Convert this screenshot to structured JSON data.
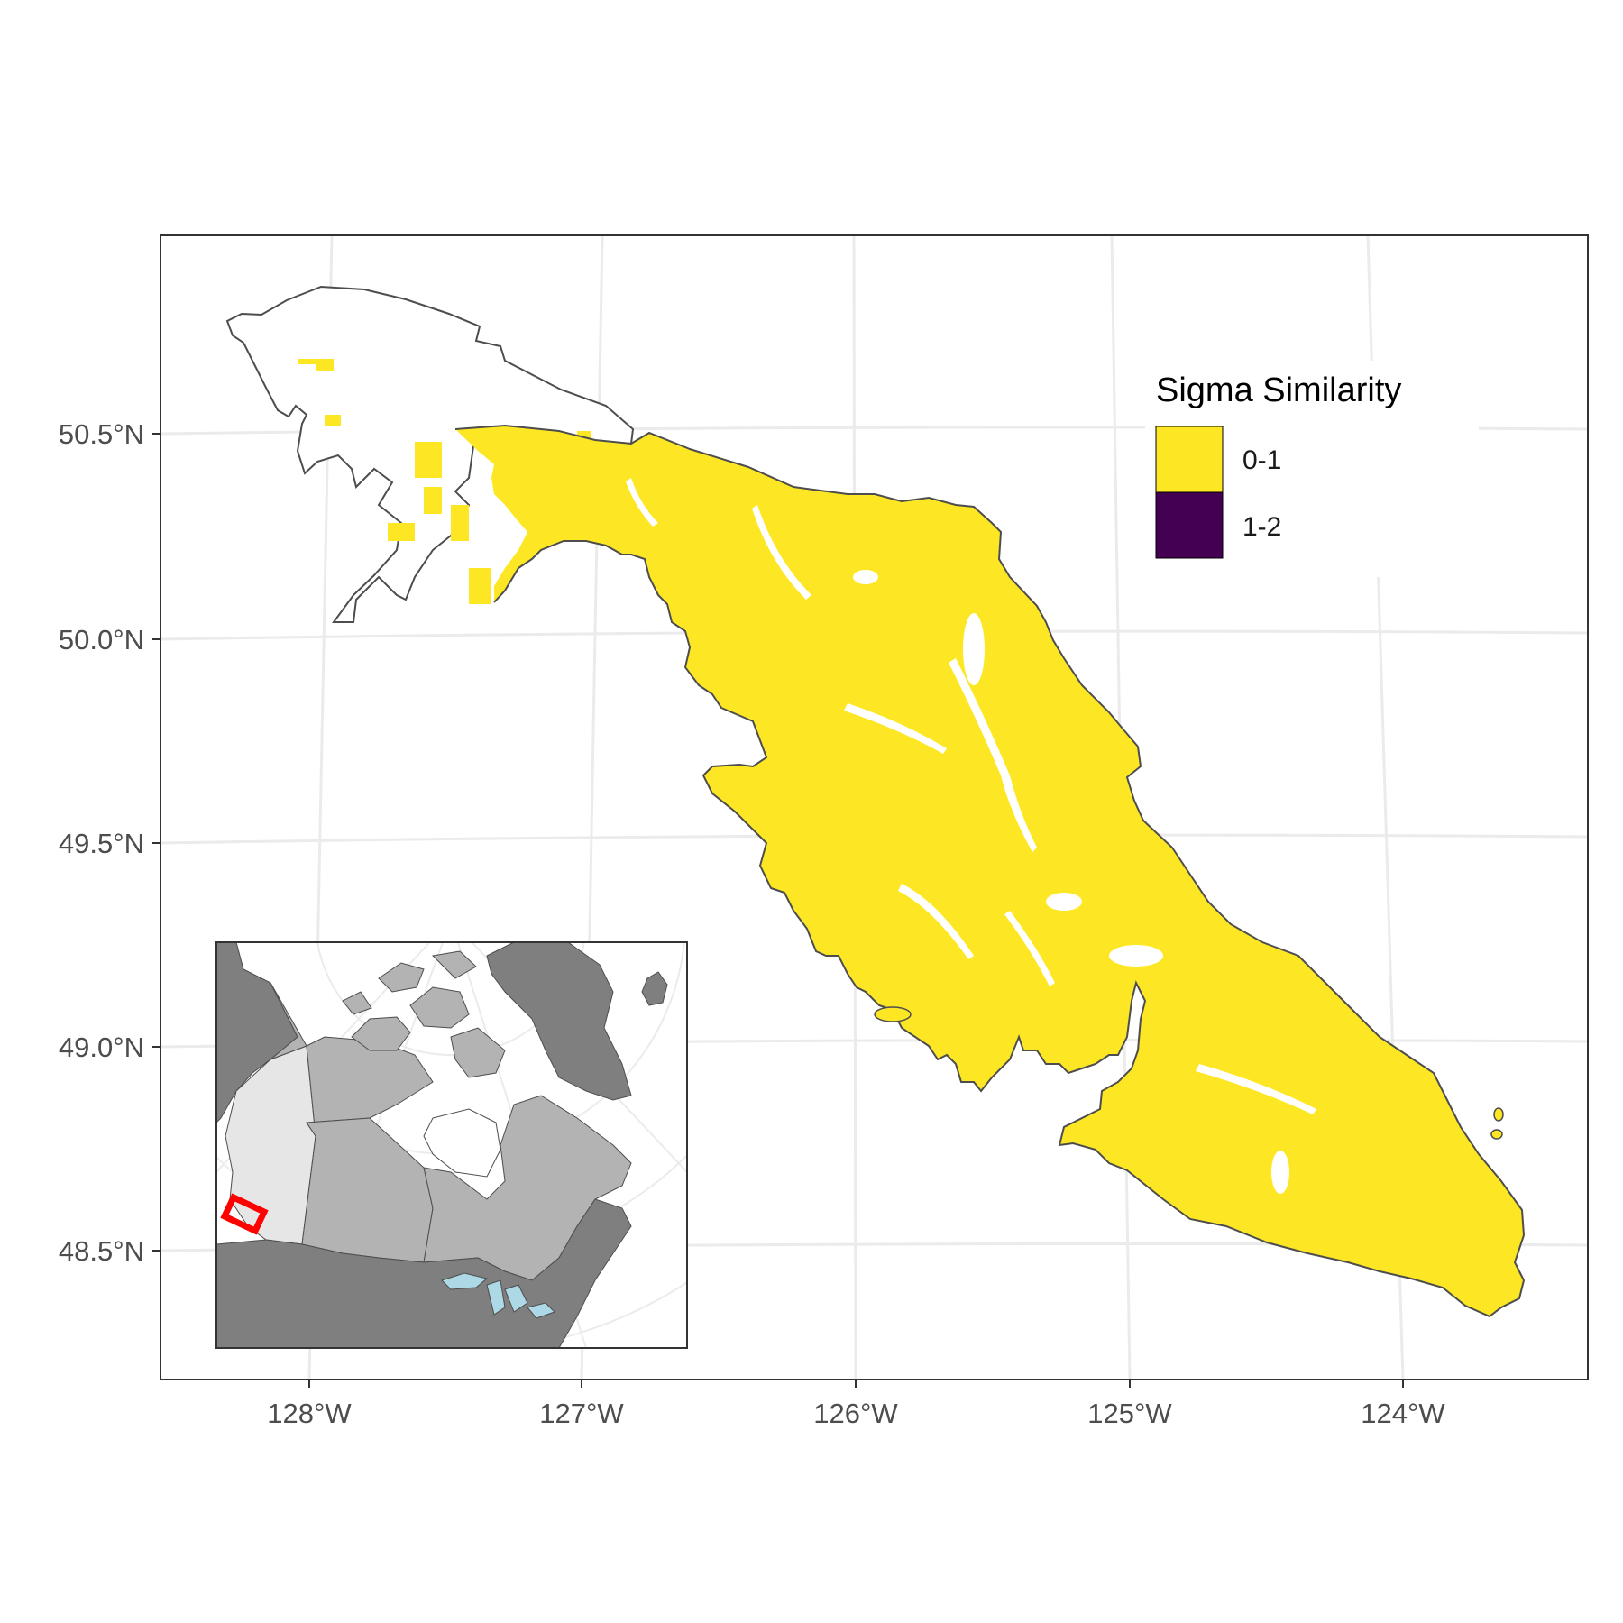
{
  "map": {
    "x_axis_labels": [
      "128°W",
      "127°W",
      "126°W",
      "125°W",
      "124°W"
    ],
    "y_axis_labels": [
      "50.5°N",
      "50.0°N",
      "49.5°N",
      "49.0°N",
      "48.5°N"
    ],
    "region": "Vancouver Island",
    "fill_color": "#fde725",
    "outline_color": "#4d4d4d",
    "grid_color": "#ebebeb"
  },
  "legend": {
    "title": "Sigma Similarity",
    "items": [
      {
        "label": "0-1",
        "color": "#fde725"
      },
      {
        "label": "1-2",
        "color": "#440154"
      }
    ]
  },
  "inset": {
    "land_color": "#7f7f7f",
    "province_color": "#b3b3b3",
    "highlight_province_color": "#e6e6e6",
    "water_color": "#add8e6",
    "marker_color": "#ff0000"
  }
}
